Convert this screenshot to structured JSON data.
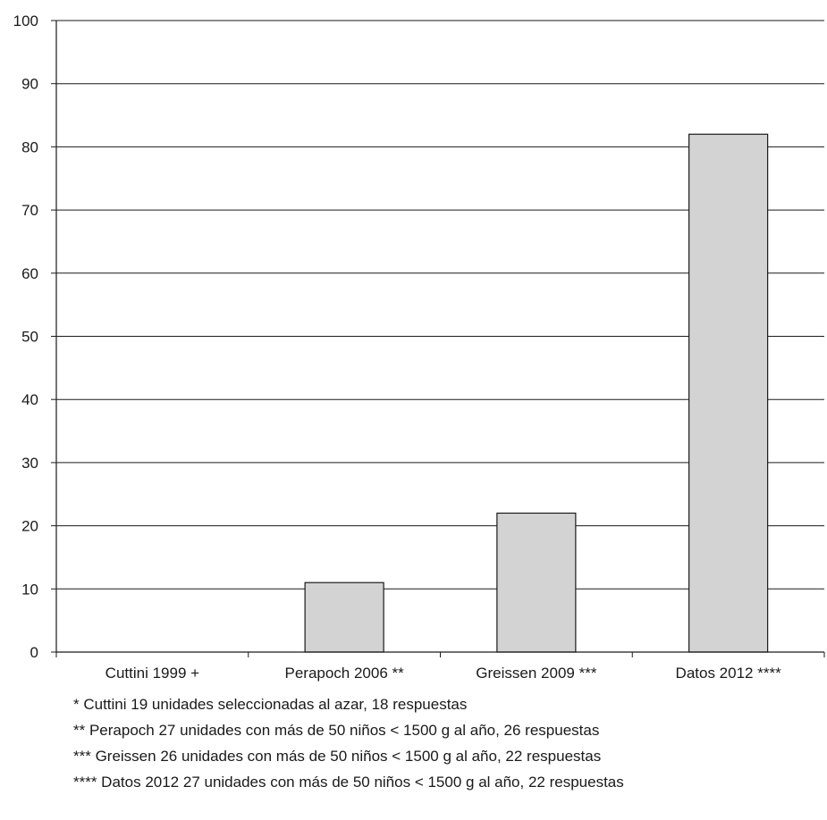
{
  "chart_data": {
    "type": "bar",
    "categories": [
      "Cuttini 1999 +",
      "Perapoch 2006 **",
      "Greissen 2009 ***",
      "Datos 2012 ****"
    ],
    "values": [
      0,
      11,
      22,
      82
    ],
    "ylim": [
      0,
      100
    ],
    "yticks": [
      "0",
      "10",
      "20",
      "30",
      "40",
      "50",
      "60",
      "70",
      "80",
      "90",
      "100"
    ],
    "grid": true,
    "bar_color": "#d3d3d3",
    "bar_edge_color": "#1a1a1a"
  },
  "footnotes": [
    "* Cuttini 19 unidades seleccionadas al azar, 18 respuestas",
    "** Perapoch 27 unidades con más de 50 niños < 1500 g al año, 26 respuestas",
    "*** Greissen 26 unidades con más de 50 niños < 1500 g al año, 22 respuestas",
    "**** Datos 2012 27 unidades con más de 50 niños < 1500 g al año, 22 respuestas"
  ]
}
